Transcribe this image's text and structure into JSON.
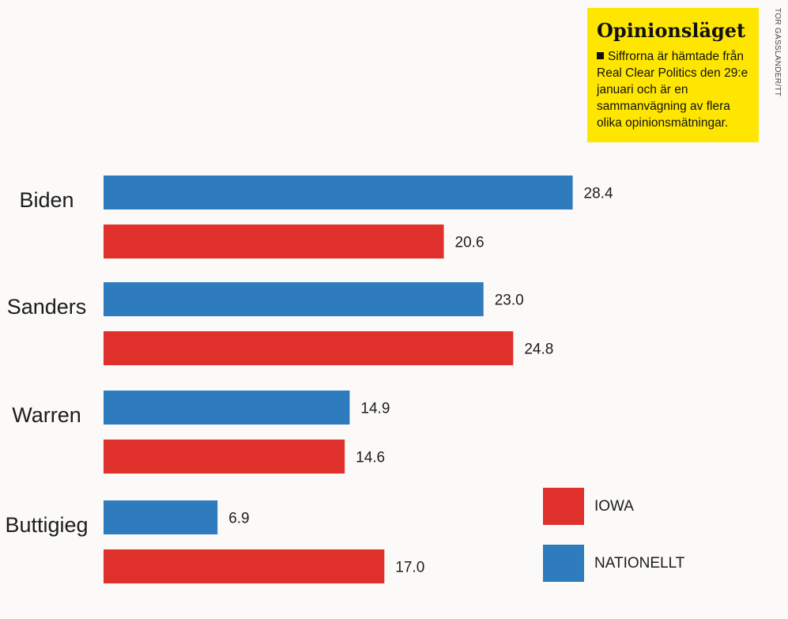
{
  "infobox": {
    "title": "Opinionsläget",
    "text": "Siffrorna är hämtade från Real Clear Politics den 29:e januari och är en sammanvägning av flera olika opinionsmätningar."
  },
  "credit": "TOR GASSLANDER/TT",
  "colors": {
    "iowa": "#e0302b",
    "national": "#2e7bbd"
  },
  "chart_data": {
    "type": "bar",
    "orientation": "horizontal",
    "categories": [
      "Biden",
      "Sanders",
      "Warren",
      "Buttigieg"
    ],
    "series": [
      {
        "name": "NATIONELLT",
        "color": "#2e7bbd",
        "values": [
          28.4,
          23.0,
          14.9,
          6.9
        ],
        "labels": [
          "28.4",
          "23.0",
          "14.9",
          "6.9"
        ]
      },
      {
        "name": "IOWA",
        "color": "#e0302b",
        "values": [
          20.6,
          24.8,
          14.6,
          17.0
        ],
        "labels": [
          "20.6",
          "24.8",
          "14.6",
          "17.0"
        ]
      }
    ],
    "legend": [
      {
        "label": "IOWA",
        "color": "#e0302b"
      },
      {
        "label": "NATIONELLT",
        "color": "#2e7bbd"
      }
    ],
    "legend_position": "bottom-right",
    "grid": false,
    "title": "",
    "xlabel": "",
    "ylabel": ""
  }
}
